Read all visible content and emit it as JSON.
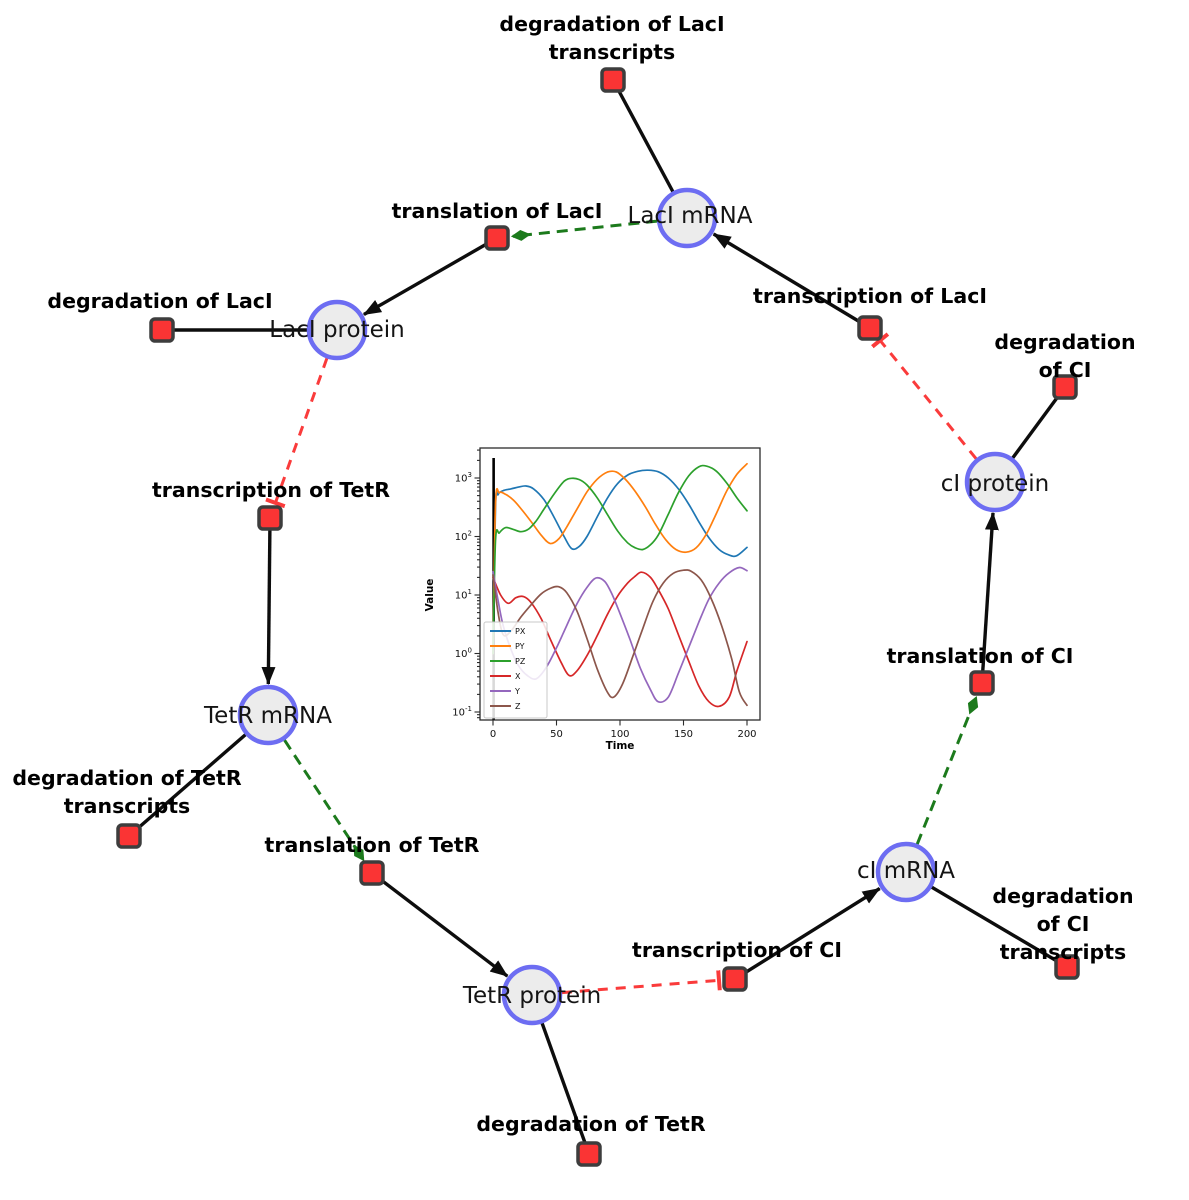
{
  "network": {
    "colors": {
      "species_fill": "#ececec",
      "species_border": "#6d6df2",
      "reaction_fill": "#fa3434",
      "reaction_border": "#3d3d3d",
      "edge": "#0d0d0d",
      "activation": "#1c7a1c",
      "inhibition": "#fa3b3b"
    },
    "species": [
      {
        "label": "LacI mRNA"
      },
      {
        "label": "LacI protein"
      },
      {
        "label": "cI protein"
      },
      {
        "label": "TetR mRNA"
      },
      {
        "label": "cI mRNA"
      },
      {
        "label": "TetR protein"
      }
    ],
    "reactions": [
      {
        "label": "degradation of LacI\ntranscripts"
      },
      {
        "label": "translation of LacI"
      },
      {
        "label": "degradation of LacI"
      },
      {
        "label": "transcription of LacI"
      },
      {
        "label": "degradation of CI"
      },
      {
        "label": "transcription of TetR"
      },
      {
        "label": "translation of CI"
      },
      {
        "label": "degradation of TetR\ntranscripts"
      },
      {
        "label": "translation of TetR"
      },
      {
        "label": "degradation of CI\ntranscripts"
      },
      {
        "label": "transcription of CI"
      },
      {
        "label": "degradation of TetR"
      }
    ]
  },
  "chart_data": {
    "type": "line",
    "xlabel": "Time",
    "ylabel": "Value",
    "x_ticks": [
      0,
      50,
      100,
      150,
      200
    ],
    "y_scale": "log",
    "y_tick_exponents": [
      -1,
      0,
      1,
      2,
      3
    ],
    "xlim": [
      -10,
      210
    ],
    "ylim": [
      0.047,
      3200
    ],
    "grid": false,
    "legend_position": "lower left",
    "vline": {
      "x": 0.5,
      "color": "#000000",
      "ymin": 0.04,
      "ymax": 2200
    },
    "series": [
      {
        "name": "PX",
        "color": "#1f77b4",
        "points": [
          [
            0,
            1
          ],
          [
            2,
            320
          ],
          [
            4,
            520
          ],
          [
            8,
            610
          ],
          [
            14,
            650
          ],
          [
            20,
            700
          ],
          [
            26,
            730
          ],
          [
            32,
            650
          ],
          [
            40,
            430
          ],
          [
            48,
            215
          ],
          [
            56,
            100
          ],
          [
            62,
            62
          ],
          [
            68,
            68
          ],
          [
            74,
            100
          ],
          [
            82,
            215
          ],
          [
            90,
            450
          ],
          [
            98,
            800
          ],
          [
            106,
            1120
          ],
          [
            114,
            1300
          ],
          [
            122,
            1360
          ],
          [
            130,
            1280
          ],
          [
            138,
            1000
          ],
          [
            146,
            650
          ],
          [
            154,
            360
          ],
          [
            162,
            180
          ],
          [
            170,
            95
          ],
          [
            178,
            60
          ],
          [
            186,
            48
          ],
          [
            192,
            47
          ],
          [
            200,
            65
          ]
        ]
      },
      {
        "name": "PY",
        "color": "#ff7f0e",
        "points": [
          [
            0,
            1
          ],
          [
            2,
            360
          ],
          [
            5,
            560
          ],
          [
            10,
            525
          ],
          [
            16,
            420
          ],
          [
            22,
            300
          ],
          [
            30,
            180
          ],
          [
            38,
            105
          ],
          [
            45,
            76
          ],
          [
            52,
            92
          ],
          [
            58,
            145
          ],
          [
            66,
            290
          ],
          [
            74,
            580
          ],
          [
            82,
            950
          ],
          [
            90,
            1260
          ],
          [
            97,
            1270
          ],
          [
            104,
            960
          ],
          [
            112,
            590
          ],
          [
            120,
            320
          ],
          [
            128,
            160
          ],
          [
            136,
            88
          ],
          [
            144,
            60
          ],
          [
            152,
            54
          ],
          [
            160,
            64
          ],
          [
            168,
            110
          ],
          [
            176,
            250
          ],
          [
            184,
            600
          ],
          [
            192,
            1150
          ],
          [
            200,
            1750
          ]
        ]
      },
      {
        "name": "PZ",
        "color": "#2ca02c",
        "points": [
          [
            0,
            1
          ],
          [
            2,
            85
          ],
          [
            5,
            115
          ],
          [
            10,
            142
          ],
          [
            16,
            132
          ],
          [
            22,
            121
          ],
          [
            28,
            134
          ],
          [
            34,
            185
          ],
          [
            40,
            290
          ],
          [
            48,
            530
          ],
          [
            56,
            880
          ],
          [
            62,
            990
          ],
          [
            68,
            940
          ],
          [
            74,
            760
          ],
          [
            82,
            460
          ],
          [
            90,
            240
          ],
          [
            98,
            125
          ],
          [
            106,
            78
          ],
          [
            112,
            64
          ],
          [
            118,
            60
          ],
          [
            124,
            72
          ],
          [
            130,
            105
          ],
          [
            138,
            240
          ],
          [
            146,
            560
          ],
          [
            154,
            1080
          ],
          [
            162,
            1550
          ],
          [
            168,
            1600
          ],
          [
            176,
            1300
          ],
          [
            184,
            820
          ],
          [
            192,
            460
          ],
          [
            200,
            275
          ]
        ]
      },
      {
        "name": "X",
        "color": "#d62728",
        "points": [
          [
            0,
            20
          ],
          [
            6,
            10
          ],
          [
            12,
            7.2
          ],
          [
            18,
            9
          ],
          [
            24,
            9.4
          ],
          [
            30,
            7.4
          ],
          [
            38,
            3.9
          ],
          [
            46,
            1.6
          ],
          [
            54,
            0.68
          ],
          [
            60,
            0.42
          ],
          [
            66,
            0.5
          ],
          [
            74,
            0.92
          ],
          [
            82,
            2
          ],
          [
            90,
            4.6
          ],
          [
            98,
            9.5
          ],
          [
            106,
            16
          ],
          [
            112,
            21
          ],
          [
            117,
            24.5
          ],
          [
            124,
            20
          ],
          [
            130,
            12.5
          ],
          [
            138,
            5.8
          ],
          [
            146,
            2.1
          ],
          [
            154,
            0.75
          ],
          [
            162,
            0.28
          ],
          [
            170,
            0.15
          ],
          [
            178,
            0.125
          ],
          [
            186,
            0.18
          ],
          [
            192,
            0.5
          ],
          [
            200,
            1.6
          ]
        ]
      },
      {
        "name": "Y",
        "color": "#9467bd",
        "points": [
          [
            0,
            25
          ],
          [
            4,
            8
          ],
          [
            8,
            3
          ],
          [
            14,
            1.2
          ],
          [
            20,
            0.62
          ],
          [
            27,
            0.42
          ],
          [
            34,
            0.37
          ],
          [
            42,
            0.58
          ],
          [
            50,
            1.25
          ],
          [
            58,
            3
          ],
          [
            66,
            7
          ],
          [
            74,
            13.5
          ],
          [
            81,
            19.5
          ],
          [
            88,
            17
          ],
          [
            94,
            10
          ],
          [
            100,
            4.8
          ],
          [
            108,
            1.7
          ],
          [
            116,
            0.56
          ],
          [
            124,
            0.24
          ],
          [
            130,
            0.15
          ],
          [
            138,
            0.18
          ],
          [
            146,
            0.46
          ],
          [
            154,
            1.25
          ],
          [
            162,
            3.4
          ],
          [
            170,
            8.5
          ],
          [
            178,
            16
          ],
          [
            186,
            24
          ],
          [
            194,
            29.5
          ],
          [
            200,
            26
          ]
        ]
      },
      {
        "name": "Z",
        "color": "#8c564b",
        "points": [
          [
            0,
            22
          ],
          [
            4,
            5
          ],
          [
            8,
            2.1
          ],
          [
            14,
            2.4
          ],
          [
            22,
            4.2
          ],
          [
            30,
            6.8
          ],
          [
            38,
            10.5
          ],
          [
            46,
            13.2
          ],
          [
            52,
            13.8
          ],
          [
            58,
            11
          ],
          [
            66,
            5.4
          ],
          [
            74,
            1.8
          ],
          [
            82,
            0.55
          ],
          [
            90,
            0.22
          ],
          [
            95,
            0.18
          ],
          [
            102,
            0.3
          ],
          [
            110,
            0.88
          ],
          [
            118,
            2.7
          ],
          [
            126,
            7.8
          ],
          [
            134,
            16
          ],
          [
            142,
            23.5
          ],
          [
            150,
            26.5
          ],
          [
            156,
            25.5
          ],
          [
            164,
            18
          ],
          [
            172,
            8.5
          ],
          [
            180,
            3
          ],
          [
            188,
            0.8
          ],
          [
            194,
            0.22
          ],
          [
            200,
            0.13
          ]
        ]
      }
    ]
  }
}
